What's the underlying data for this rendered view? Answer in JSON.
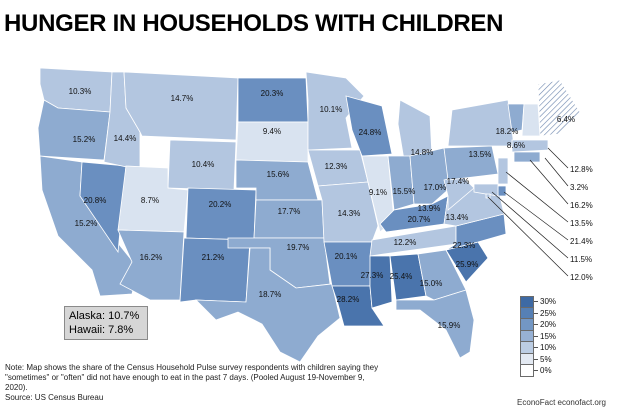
{
  "title": "HUNGER IN HOUSEHOLDS WITH CHILDREN",
  "states": [
    {
      "id": "WA",
      "value": "10.3%"
    },
    {
      "id": "OR",
      "value": "15.2%"
    },
    {
      "id": "CA",
      "value": "15.2%"
    },
    {
      "id": "NV",
      "value": "20.8%"
    },
    {
      "id": "ID",
      "value": "14.4%"
    },
    {
      "id": "MT",
      "value": "14.7%"
    },
    {
      "id": "WY",
      "value": "10.4%"
    },
    {
      "id": "UT",
      "value": "8.7%"
    },
    {
      "id": "AZ",
      "value": "16.2%"
    },
    {
      "id": "CO",
      "value": "20.2%"
    },
    {
      "id": "NM",
      "value": "21.2%"
    },
    {
      "id": "ND",
      "value": "20.3%"
    },
    {
      "id": "SD",
      "value": "9.4%"
    },
    {
      "id": "NE",
      "value": "15.6%"
    },
    {
      "id": "KS",
      "value": "17.7%"
    },
    {
      "id": "OK",
      "value": "19.7%"
    },
    {
      "id": "TX",
      "value": "18.7%"
    },
    {
      "id": "MN",
      "value": "10.1%"
    },
    {
      "id": "IA",
      "value": "12.3%"
    },
    {
      "id": "MO",
      "value": "14.3%"
    },
    {
      "id": "AR",
      "value": "20.1%"
    },
    {
      "id": "LA",
      "value": "28.2%"
    },
    {
      "id": "WI",
      "value": "24.8%"
    },
    {
      "id": "IL",
      "value": "9.1%"
    },
    {
      "id": "MI",
      "value": "14.8%"
    },
    {
      "id": "IN",
      "value": "15.5%"
    },
    {
      "id": "OH",
      "value": "17.0%"
    },
    {
      "id": "KY",
      "value": "20.7%"
    },
    {
      "id": "TN",
      "value": "12.2%"
    },
    {
      "id": "MS",
      "value": "27.3%"
    },
    {
      "id": "AL",
      "value": "25.4%"
    },
    {
      "id": "GA",
      "value": "15.0%"
    },
    {
      "id": "FL",
      "value": "15.9%"
    },
    {
      "id": "SC",
      "value": "25.9%"
    },
    {
      "id": "NC",
      "value": "22.3%"
    },
    {
      "id": "VA",
      "value": "13.4%"
    },
    {
      "id": "WV",
      "value": "13.9%"
    },
    {
      "id": "PA",
      "value": "17.4%"
    },
    {
      "id": "NY",
      "value": "13.5%"
    },
    {
      "id": "VT",
      "value": "18.2%"
    },
    {
      "id": "NH",
      "value": "8.6%"
    },
    {
      "id": "ME",
      "value": "6.4%"
    }
  ],
  "callouts": [
    {
      "id": "MA",
      "value": "12.8%"
    },
    {
      "id": "RI",
      "value": "3.2%"
    },
    {
      "id": "CT",
      "value": "16.2%"
    },
    {
      "id": "NJ",
      "value": "13.5%"
    },
    {
      "id": "DE",
      "value": "21.4%"
    },
    {
      "id": "MD",
      "value": "11.5%"
    },
    {
      "id": "DC",
      "value": "12.0%"
    }
  ],
  "ak_hi": {
    "alaska": "Alaska: 10.7%",
    "hawaii": "Hawaii: 7.8%"
  },
  "legend": [
    {
      "label": "30%",
      "color": "#3e6aa4"
    },
    {
      "label": "25%",
      "color": "#5680b5"
    },
    {
      "label": "20%",
      "color": "#7397c4"
    },
    {
      "label": "15%",
      "color": "#97b1d4"
    },
    {
      "label": "10%",
      "color": "#bccde3"
    },
    {
      "label": "5%",
      "color": "#e3e9f2"
    },
    {
      "label": "0%",
      "color": "#ffffff"
    }
  ],
  "note": "Note: Map shows the share of the Census Household Pulse survey respondents with children saying they \"sometimes\" or \"often\" did not have enough to eat in the past 7 days. (Pooled August 19-November 9, 2020).",
  "source": "Source: US Census Bureau",
  "footer": "EconoFact   econofact.org"
}
